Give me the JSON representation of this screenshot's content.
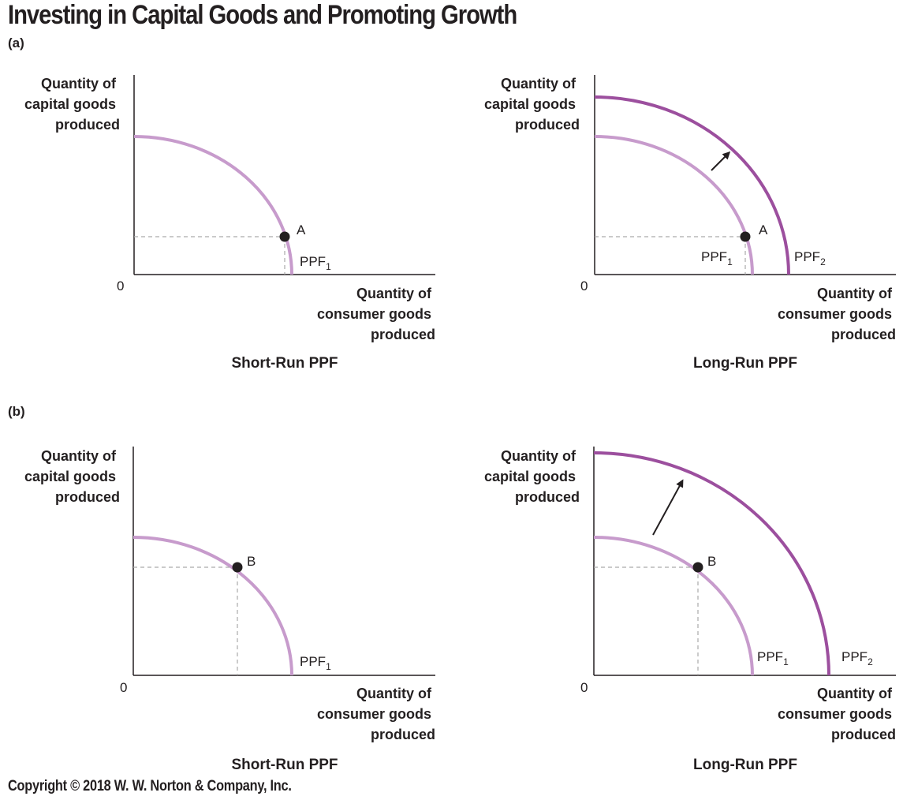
{
  "title": "Investing in Capital Goods and Promoting Growth",
  "copyright": "Copyright © 2018 W. W. Norton & Company, Inc.",
  "colors": {
    "ppf1": "#c79bcc",
    "ppf2": "#9c4f9e",
    "axis": "#231f20",
    "guide": "#aaaaaa"
  },
  "panels": [
    {
      "label": "(a)",
      "graphs": [
        {
          "caption": "Short-Run PPF",
          "y_label": [
            "Quantity of",
            "capital goods",
            "produced"
          ],
          "x_label": [
            "Quantity of",
            "consumer goods",
            "produced"
          ],
          "origin": "0",
          "point": "A",
          "ppf_labels": [
            {
              "text": "PPF",
              "sub": "1"
            }
          ]
        },
        {
          "caption": "Long-Run PPF",
          "y_label": [
            "Quantity of",
            "capital goods",
            "produced"
          ],
          "x_label": [
            "Quantity of",
            "consumer goods",
            "produced"
          ],
          "origin": "0",
          "point": "A",
          "ppf_labels": [
            {
              "text": "PPF",
              "sub": "1"
            },
            {
              "text": "PPF",
              "sub": "2"
            }
          ]
        }
      ]
    },
    {
      "label": "(b)",
      "graphs": [
        {
          "caption": "Short-Run PPF",
          "y_label": [
            "Quantity of",
            "capital goods",
            "produced"
          ],
          "x_label": [
            "Quantity of",
            "consumer goods",
            "produced"
          ],
          "origin": "0",
          "point": "B",
          "ppf_labels": [
            {
              "text": "PPF",
              "sub": "1"
            }
          ]
        },
        {
          "caption": "Long-Run PPF",
          "y_label": [
            "Quantity of",
            "capital goods",
            "produced"
          ],
          "x_label": [
            "Quantity of",
            "consumer goods",
            "produced"
          ],
          "origin": "0",
          "point": "B",
          "ppf_labels": [
            {
              "text": "PPF",
              "sub": "1"
            },
            {
              "text": "PPF",
              "sub": "2"
            }
          ]
        }
      ]
    }
  ]
}
